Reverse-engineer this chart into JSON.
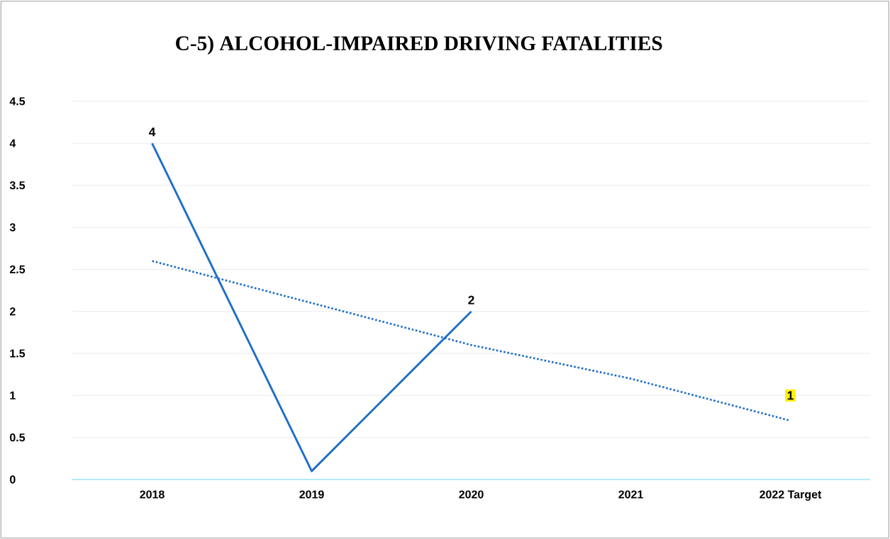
{
  "chart_data": {
    "type": "line",
    "title": "C-5) ALCOHOL-IMPAIRED DRIVING FATALITIES",
    "categories": [
      "2018",
      "2019",
      "2020",
      "2021",
      "2022 Target"
    ],
    "series": [
      {
        "color": "#1f6fc8",
        "values": [
          4,
          0.1,
          2,
          null,
          null
        ],
        "value_labels": [
          "4",
          null,
          "2",
          null,
          null
        ],
        "line_style": "solid"
      },
      {
        "type": "line",
        "color": "#1f6fc8",
        "values": [
          2.6,
          2.1,
          1.6,
          1.2,
          0.7
        ],
        "line_style": "dotted"
      }
    ],
    "annotations": [
      {
        "text": "1",
        "x": "2022 Target",
        "y": 1
      }
    ],
    "ylim": [
      0,
      4.5
    ],
    "yticks": [
      0,
      0.5,
      1,
      1.5,
      2,
      2.5,
      3,
      3.5,
      4,
      4.5
    ],
    "grid": "y",
    "marker": "none"
  }
}
